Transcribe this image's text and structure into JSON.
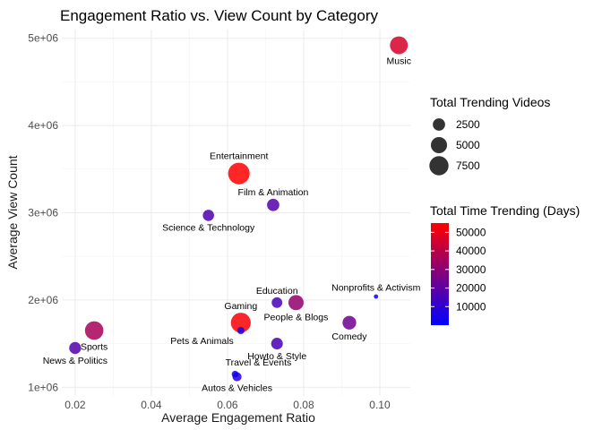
{
  "chart_data": {
    "type": "scatter",
    "title": "Engagement Ratio vs. View Count by Category",
    "xlabel": "Average Engagement Ratio",
    "ylabel": "Average View Count",
    "xlim": [
      0.0165,
      0.108
    ],
    "ylim": [
      900000,
      5100000
    ],
    "xticks": [
      0.02,
      0.04,
      0.06,
      0.08,
      0.1
    ],
    "xtick_labels": [
      "0.02",
      "0.04",
      "0.06",
      "0.08",
      "0.10"
    ],
    "yticks": [
      1000000,
      2000000,
      3000000,
      4000000,
      5000000
    ],
    "ytick_labels": [
      "1e+06",
      "2e+06",
      "3e+06",
      "4e+06",
      "5e+06"
    ],
    "grid": true,
    "size_legend": {
      "title": "Total Trending Videos",
      "values": [
        2500,
        5000,
        7500
      ],
      "labels": [
        "2500",
        "5000",
        "7500"
      ]
    },
    "color_legend": {
      "title": "Total Time Trending (Days)",
      "low_color": "#0000ff",
      "high_color": "#ff0000",
      "min": 0,
      "max": 55000,
      "values": [
        10000,
        20000,
        30000,
        40000,
        50000
      ],
      "labels": [
        "10000",
        "20000",
        "30000",
        "40000",
        "50000"
      ]
    },
    "points": [
      {
        "label": "Music",
        "x": 0.105,
        "y": 4920000,
        "videos": 6300,
        "days": 46000,
        "label_pos": "below"
      },
      {
        "label": "Entertainment",
        "x": 0.063,
        "y": 3450000,
        "videos": 9900,
        "days": 56000,
        "label_pos": "above"
      },
      {
        "label": "Film & Animation",
        "x": 0.072,
        "y": 3090000,
        "videos": 2500,
        "days": 18000,
        "label_pos": "above"
      },
      {
        "label": "Science & Technology",
        "x": 0.055,
        "y": 2970000,
        "videos": 2000,
        "days": 17000,
        "label_pos": "below"
      },
      {
        "label": "Nonprofits & Activism",
        "x": 0.099,
        "y": 2040000,
        "videos": 60,
        "days": 600,
        "label_pos": "above"
      },
      {
        "label": "Education",
        "x": 0.073,
        "y": 1970000,
        "videos": 1700,
        "days": 15000,
        "label_pos": "above"
      },
      {
        "label": "People & Blogs",
        "x": 0.078,
        "y": 1970000,
        "videos": 4300,
        "days": 31000,
        "label_pos": "below"
      },
      {
        "label": "Gaming",
        "x": 0.0635,
        "y": 1740000,
        "videos": 8200,
        "days": 54000,
        "label_pos": "above"
      },
      {
        "label": "Comedy",
        "x": 0.092,
        "y": 1740000,
        "videos": 3300,
        "days": 24000,
        "label_pos": "below"
      },
      {
        "label": "Sports",
        "x": 0.025,
        "y": 1650000,
        "videos": 6900,
        "days": 36000,
        "label_pos": "below"
      },
      {
        "label": "Pets & Animals",
        "x": 0.0635,
        "y": 1650000,
        "videos": 550,
        "days": 4000,
        "label_pos": "belowleft"
      },
      {
        "label": "Howto & Style",
        "x": 0.073,
        "y": 1500000,
        "videos": 2200,
        "days": 16000,
        "label_pos": "below"
      },
      {
        "label": "News & Politics",
        "x": 0.02,
        "y": 1450000,
        "videos": 2300,
        "days": 18000,
        "label_pos": "below"
      },
      {
        "label": "Travel & Events",
        "x": 0.062,
        "y": 1150000,
        "videos": 450,
        "days": 3000,
        "label_pos": "aboveleft"
      },
      {
        "label": "Autos & Vehicles",
        "x": 0.0625,
        "y": 1120000,
        "videos": 1100,
        "days": 8000,
        "label_pos": "below"
      }
    ]
  }
}
